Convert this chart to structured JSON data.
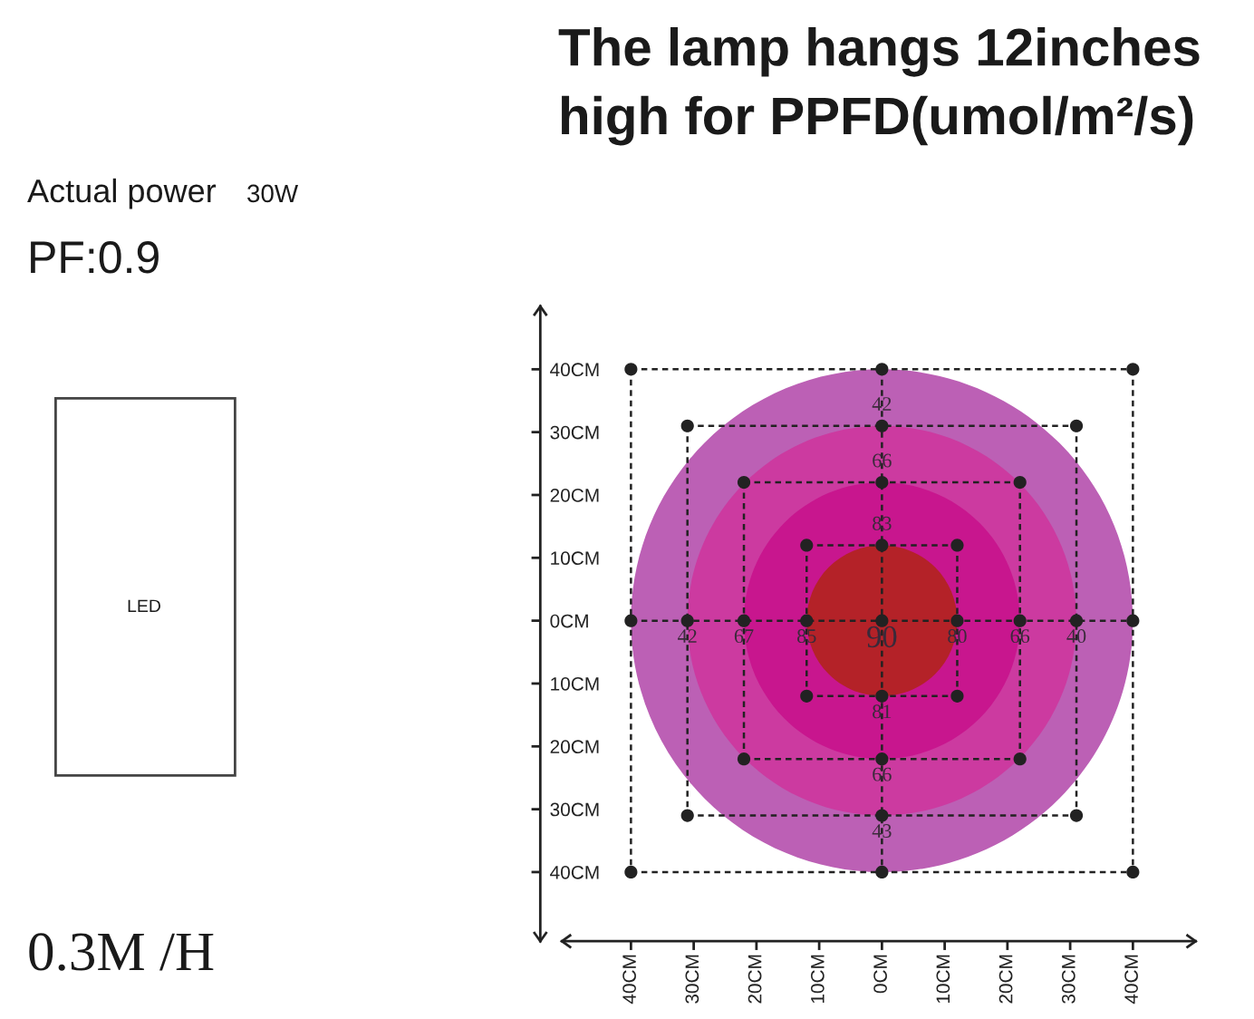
{
  "chart_data": {
    "type": "scatter",
    "title": "The lamp hangs 12inches high for PPFD(umol/m²/s)",
    "annotations": [
      "Actual power",
      "30W",
      "PF:0.9",
      "LED",
      "0.3M /H",
      {
        "text": "42",
        "x": 0,
        "y": 31
      },
      {
        "text": "66",
        "x": 0,
        "y": 22
      },
      {
        "text": "83",
        "x": 0,
        "y": 12
      },
      {
        "text": "42",
        "x": -31,
        "y": 0
      },
      {
        "text": "67",
        "x": -22,
        "y": 0
      },
      {
        "text": "85",
        "x": -12,
        "y": 0
      },
      {
        "text": "90",
        "x": 0,
        "y": 0
      },
      {
        "text": "80",
        "x": 12,
        "y": 0
      },
      {
        "text": "66",
        "x": 22,
        "y": 0
      },
      {
        "text": "40",
        "x": 31,
        "y": 0
      },
      {
        "text": "81",
        "x": 0,
        "y": -12
      },
      {
        "text": "66",
        "x": 0,
        "y": -22
      },
      {
        "text": "43",
        "x": 0,
        "y": -31
      }
    ],
    "xlim": [
      -51,
      50
    ],
    "ylim": [
      -51,
      50
    ],
    "xticks": [
      {
        "value": -40,
        "label": "40CM"
      },
      {
        "value": -30,
        "label": "30CM"
      },
      {
        "value": -20,
        "label": "20CM"
      },
      {
        "value": -10,
        "label": "10CM"
      },
      {
        "value": 0,
        "label": "0CM"
      },
      {
        "value": 10,
        "label": "10CM"
      },
      {
        "value": 20,
        "label": "20CM"
      },
      {
        "value": 30,
        "label": "30CM"
      },
      {
        "value": 40,
        "label": "40CM"
      }
    ],
    "yticks": [
      {
        "value": 40,
        "label": "40CM"
      },
      {
        "value": 30,
        "label": "30CM"
      },
      {
        "value": 20,
        "label": "20CM"
      },
      {
        "value": 10,
        "label": "10CM"
      },
      {
        "value": 0,
        "label": "0CM"
      },
      {
        "value": -10,
        "label": "10CM"
      },
      {
        "value": -20,
        "label": "20CM"
      },
      {
        "value": -30,
        "label": "30CM"
      },
      {
        "value": -40,
        "label": "40CM"
      }
    ],
    "line_style": "dashed",
    "series": [
      {
        "type": "line",
        "color": "#222222",
        "x": [
          -40,
          40
        ],
        "values": [
          40,
          40
        ]
      },
      {
        "type": "line",
        "color": "#222222",
        "x": [
          -31,
          31
        ],
        "values": [
          31,
          31
        ]
      },
      {
        "type": "line",
        "color": "#222222",
        "x": [
          -22,
          22
        ],
        "values": [
          22,
          22
        ]
      },
      {
        "type": "line",
        "color": "#222222",
        "x": [
          -12,
          12
        ],
        "values": [
          12,
          12
        ]
      },
      {
        "type": "line",
        "color": "#222222",
        "x": [
          -40,
          40
        ],
        "values": [
          0,
          0
        ]
      },
      {
        "type": "line",
        "color": "#222222",
        "x": [
          -12,
          12
        ],
        "values": [
          -12,
          -12
        ]
      },
      {
        "type": "line",
        "color": "#222222",
        "x": [
          -22,
          22
        ],
        "values": [
          -22,
          -22
        ]
      },
      {
        "type": "line",
        "color": "#222222",
        "x": [
          -31,
          31
        ],
        "values": [
          -31,
          -31
        ]
      },
      {
        "type": "line",
        "color": "#222222",
        "x": [
          -40,
          40
        ],
        "values": [
          -40,
          -40
        ]
      },
      {
        "type": "line",
        "color": "#222222",
        "x": [
          -40,
          -40
        ],
        "values": [
          40,
          -40
        ]
      },
      {
        "type": "line",
        "color": "#222222",
        "x": [
          -31,
          -31
        ],
        "values": [
          31,
          -31
        ]
      },
      {
        "type": "line",
        "color": "#222222",
        "x": [
          -22,
          -22
        ],
        "values": [
          22,
          -22
        ]
      },
      {
        "type": "line",
        "color": "#222222",
        "x": [
          -12,
          -12
        ],
        "values": [
          12,
          -12
        ]
      },
      {
        "type": "line",
        "color": "#222222",
        "x": [
          0,
          0
        ],
        "values": [
          40,
          -40
        ]
      },
      {
        "type": "line",
        "color": "#222222",
        "x": [
          12,
          12
        ],
        "values": [
          12,
          -12
        ]
      },
      {
        "type": "line",
        "color": "#222222",
        "x": [
          22,
          22
        ],
        "values": [
          22,
          -22
        ]
      },
      {
        "type": "line",
        "color": "#222222",
        "x": [
          31,
          31
        ],
        "values": [
          31,
          -31
        ]
      },
      {
        "type": "line",
        "color": "#222222",
        "x": [
          40,
          40
        ],
        "values": [
          40,
          -40
        ]
      },
      {
        "color": "#222222",
        "marker": "circle",
        "x": [
          -40,
          0,
          40,
          -31,
          0,
          31,
          -22,
          0,
          22,
          -12,
          0,
          12,
          -40,
          -31,
          -22,
          -12,
          0,
          12,
          22,
          31,
          40,
          -12,
          0,
          12,
          -22,
          0,
          22,
          -31,
          0,
          31,
          -40,
          0,
          40
        ],
        "values": [
          40,
          40,
          40,
          31,
          31,
          31,
          22,
          22,
          22,
          12,
          12,
          12,
          0,
          0,
          0,
          0,
          0,
          0,
          0,
          0,
          0,
          -12,
          -12,
          -12,
          -22,
          -22,
          -22,
          -31,
          -31,
          -31,
          -40,
          -40,
          -40
        ]
      }
    ]
  }
}
